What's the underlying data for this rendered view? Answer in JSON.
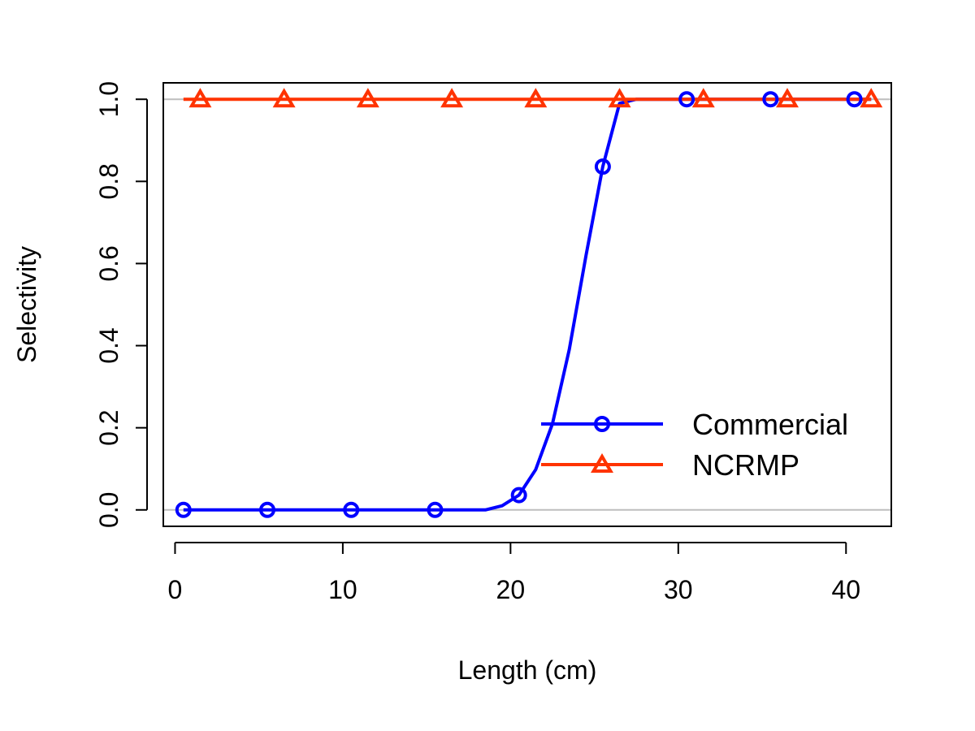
{
  "chart_data": {
    "type": "line",
    "title": "",
    "xlabel": "Length (cm)",
    "ylabel": "Selectivity",
    "xlim": [
      -0.7,
      42.7
    ],
    "ylim": [
      -0.04,
      1.04
    ],
    "x_ticks": [
      0,
      10,
      20,
      30,
      40
    ],
    "x_tick_labels": [
      "0",
      "10",
      "20",
      "30",
      "40"
    ],
    "y_ticks": [
      0,
      0.2,
      0.4,
      0.6,
      0.8,
      1
    ],
    "y_tick_labels": [
      "0.0",
      "0.2",
      "0.4",
      "0.6",
      "0.8",
      "1.0"
    ],
    "reference_lines_y": [
      0,
      1
    ],
    "reference_line_color": "#bebebe",
    "grid": false,
    "legend_position": "bottom-right",
    "series": [
      {
        "name": "Commercial",
        "color": "#0000ff",
        "marker": "circle",
        "line": [
          [
            0.5,
            0
          ],
          [
            18.5,
            0
          ],
          [
            19.5,
            0.01
          ],
          [
            20.5,
            0.036
          ],
          [
            21.5,
            0.098
          ],
          [
            22.5,
            0.21
          ],
          [
            23.5,
            0.39
          ],
          [
            24.5,
            0.62
          ],
          [
            25.5,
            0.836
          ],
          [
            26.5,
            0.99
          ],
          [
            27.5,
            1.0
          ],
          [
            41.5,
            1.0
          ]
        ],
        "markers": [
          [
            0.5,
            0
          ],
          [
            5.5,
            0
          ],
          [
            10.5,
            0
          ],
          [
            15.5,
            0
          ],
          [
            20.5,
            0.036
          ],
          [
            25.5,
            0.836
          ],
          [
            30.5,
            1.0
          ],
          [
            35.5,
            1.0
          ],
          [
            40.5,
            1.0
          ]
        ]
      },
      {
        "name": "NCRMP",
        "color": "#ff3300",
        "marker": "triangle",
        "line": [
          [
            0.5,
            1.0
          ],
          [
            41.5,
            1.0
          ]
        ],
        "markers": [
          [
            1.5,
            1.0
          ],
          [
            6.5,
            1.0
          ],
          [
            11.5,
            1.0
          ],
          [
            16.5,
            1.0
          ],
          [
            21.5,
            1.0
          ],
          [
            26.5,
            1.0
          ],
          [
            31.5,
            1.0
          ],
          [
            36.5,
            1.0
          ],
          [
            41.5,
            1.0
          ]
        ]
      }
    ]
  }
}
